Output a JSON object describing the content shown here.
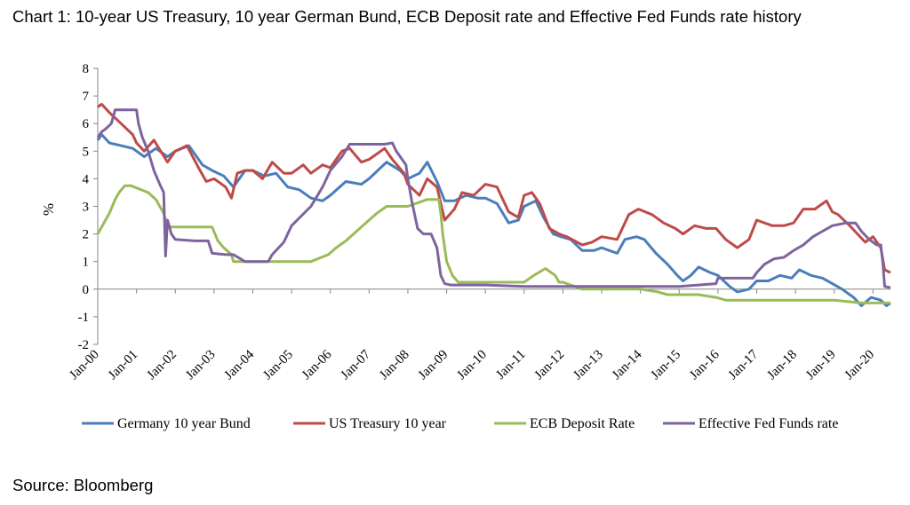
{
  "title": "Chart 1: 10-year US Treasury, 10 year German Bund, ECB Deposit rate and Effective Fed Funds rate history",
  "source": "Source: Bloomberg",
  "chart_data": {
    "type": "line",
    "title": "Chart 1: 10-year US Treasury, 10 year German Bund, ECB Deposit rate and Effective Fed Funds rate history",
    "xlabel": "",
    "ylabel": "%",
    "ylim": [
      -2,
      8
    ],
    "yticks": [
      "8",
      "7",
      "6",
      "5",
      "4",
      "3",
      "2",
      "1",
      "0",
      "-1",
      "-2"
    ],
    "xlim": [
      2000.0,
      2020.45
    ],
    "xticks": [
      "Jan-00",
      "Jan-01",
      "Jan-02",
      "Jan-03",
      "Jan-04",
      "Jan-05",
      "Jan-06",
      "Jan-07",
      "Jan-08",
      "Jan-09",
      "Jan-10",
      "Jan-11",
      "Jan-12",
      "Jan-13",
      "Jan-14",
      "Jan-15",
      "Jan-16",
      "Jan-17",
      "Jan-18",
      "Jan-19",
      "Jan-20"
    ],
    "grid": false,
    "legend_position": "bottom",
    "series": [
      {
        "name": "Germany 10 year Bund",
        "color": "#4a7ebb",
        "x": [
          2000.0,
          2000.1,
          2000.3,
          2000.6,
          2000.9,
          2001.2,
          2001.5,
          2001.8,
          2002.0,
          2002.35,
          2002.7,
          2002.95,
          2003.25,
          2003.5,
          2003.8,
          2004.0,
          2004.3,
          2004.6,
          2004.9,
          2005.2,
          2005.5,
          2005.8,
          2006.0,
          2006.4,
          2006.8,
          2007.0,
          2007.45,
          2007.8,
          2008.0,
          2008.3,
          2008.5,
          2008.75,
          2008.95,
          2009.2,
          2009.5,
          2009.8,
          2010.0,
          2010.3,
          2010.6,
          2010.85,
          2011.0,
          2011.3,
          2011.5,
          2011.75,
          2011.95,
          2012.2,
          2012.5,
          2012.8,
          2013.0,
          2013.4,
          2013.6,
          2013.9,
          2014.1,
          2014.4,
          2014.7,
          2014.95,
          2015.1,
          2015.3,
          2015.5,
          2015.8,
          2016.0,
          2016.3,
          2016.5,
          2016.8,
          2017.0,
          2017.3,
          2017.6,
          2017.9,
          2018.1,
          2018.4,
          2018.7,
          2018.95,
          2019.2,
          2019.5,
          2019.7,
          2019.95,
          2020.2,
          2020.35,
          2020.45
        ],
        "y": [
          5.4,
          5.6,
          5.3,
          5.2,
          5.1,
          4.8,
          5.1,
          4.8,
          5.0,
          5.2,
          4.5,
          4.3,
          4.1,
          3.7,
          4.3,
          4.3,
          4.1,
          4.2,
          3.7,
          3.6,
          3.3,
          3.2,
          3.4,
          3.9,
          3.8,
          4.0,
          4.6,
          4.3,
          4.0,
          4.2,
          4.6,
          3.9,
          3.2,
          3.2,
          3.4,
          3.3,
          3.3,
          3.1,
          2.4,
          2.5,
          3.0,
          3.2,
          2.6,
          2.0,
          1.9,
          1.8,
          1.4,
          1.4,
          1.5,
          1.3,
          1.8,
          1.9,
          1.8,
          1.3,
          0.9,
          0.5,
          0.3,
          0.5,
          0.8,
          0.6,
          0.5,
          0.1,
          -0.1,
          0.0,
          0.3,
          0.3,
          0.5,
          0.4,
          0.7,
          0.5,
          0.4,
          0.2,
          0.0,
          -0.3,
          -0.6,
          -0.3,
          -0.4,
          -0.6,
          -0.5
        ]
      },
      {
        "name": "US Treasury 10 year",
        "color": "#be4b48",
        "x": [
          2000.0,
          2000.1,
          2000.3,
          2000.6,
          2000.9,
          2001.0,
          2001.2,
          2001.45,
          2001.8,
          2002.0,
          2002.3,
          2002.6,
          2002.8,
          2003.0,
          2003.3,
          2003.45,
          2003.6,
          2003.8,
          2004.0,
          2004.25,
          2004.5,
          2004.8,
          2005.0,
          2005.3,
          2005.5,
          2005.8,
          2006.0,
          2006.3,
          2006.5,
          2006.8,
          2007.0,
          2007.4,
          2007.6,
          2007.9,
          2008.0,
          2008.3,
          2008.5,
          2008.75,
          2008.95,
          2009.2,
          2009.4,
          2009.7,
          2010.0,
          2010.3,
          2010.6,
          2010.85,
          2011.0,
          2011.2,
          2011.4,
          2011.65,
          2011.9,
          2012.1,
          2012.5,
          2012.75,
          2013.0,
          2013.4,
          2013.7,
          2013.95,
          2014.3,
          2014.6,
          2014.9,
          2015.1,
          2015.4,
          2015.7,
          2015.95,
          2016.2,
          2016.5,
          2016.8,
          2017.0,
          2017.4,
          2017.7,
          2017.95,
          2018.2,
          2018.5,
          2018.8,
          2018.95,
          2019.1,
          2019.4,
          2019.6,
          2019.8,
          2020.0,
          2020.2,
          2020.3,
          2020.45
        ],
        "y": [
          6.6,
          6.7,
          6.4,
          6.0,
          5.6,
          5.3,
          5.0,
          5.4,
          4.6,
          5.0,
          5.2,
          4.4,
          3.9,
          4.0,
          3.7,
          3.3,
          4.2,
          4.3,
          4.3,
          4.0,
          4.6,
          4.2,
          4.2,
          4.5,
          4.2,
          4.5,
          4.4,
          5.0,
          5.1,
          4.6,
          4.7,
          5.1,
          4.7,
          4.2,
          3.8,
          3.4,
          4.0,
          3.7,
          2.5,
          2.9,
          3.5,
          3.4,
          3.8,
          3.7,
          2.8,
          2.6,
          3.4,
          3.5,
          3.1,
          2.2,
          2.0,
          1.9,
          1.6,
          1.7,
          1.9,
          1.8,
          2.7,
          2.9,
          2.7,
          2.4,
          2.2,
          2.0,
          2.3,
          2.2,
          2.2,
          1.8,
          1.5,
          1.8,
          2.5,
          2.3,
          2.3,
          2.4,
          2.9,
          2.9,
          3.2,
          2.8,
          2.7,
          2.3,
          2.0,
          1.7,
          1.9,
          1.5,
          0.7,
          0.6
        ]
      },
      {
        "name": "ECB Deposit Rate",
        "color": "#9bbb59",
        "x": [
          2000.0,
          2000.1,
          2000.2,
          2000.3,
          2000.45,
          2000.55,
          2000.7,
          2000.85,
          2001.3,
          2001.5,
          2001.7,
          2001.8,
          2001.95,
          2002.0,
          2002.2,
          2002.4,
          2002.6,
          2002.85,
          2002.95,
          2003.1,
          2003.25,
          2003.45,
          2003.5,
          2004.0,
          2004.5,
          2005.0,
          2005.5,
          2005.95,
          2006.15,
          2006.4,
          2006.6,
          2006.8,
          2007.0,
          2007.2,
          2007.45,
          2007.8,
          2008.0,
          2008.5,
          2008.8,
          2008.85,
          2008.9,
          2009.0,
          2009.15,
          2009.3,
          2009.5,
          2010.0,
          2011.0,
          2011.25,
          2011.55,
          2011.8,
          2011.9,
          2012.0,
          2012.5,
          2013.0,
          2014.0,
          2014.45,
          2014.7,
          2015.0,
          2015.5,
          2015.95,
          2016.2,
          2016.5,
          2017.0,
          2018.0,
          2019.0,
          2019.7,
          2020.0,
          2020.45
        ],
        "y": [
          2.0,
          2.25,
          2.5,
          2.75,
          3.25,
          3.5,
          3.75,
          3.75,
          3.5,
          3.25,
          2.75,
          2.25,
          2.25,
          2.25,
          2.25,
          2.25,
          2.25,
          2.25,
          2.25,
          1.75,
          1.5,
          1.25,
          1.0,
          1.0,
          1.0,
          1.0,
          1.0,
          1.25,
          1.5,
          1.75,
          2.0,
          2.25,
          2.5,
          2.75,
          3.0,
          3.0,
          3.0,
          3.25,
          3.25,
          2.75,
          2.0,
          1.0,
          0.5,
          0.25,
          0.25,
          0.25,
          0.25,
          0.5,
          0.75,
          0.5,
          0.25,
          0.25,
          0.0,
          0.0,
          0.0,
          -0.1,
          -0.2,
          -0.2,
          -0.2,
          -0.3,
          -0.4,
          -0.4,
          -0.4,
          -0.4,
          -0.4,
          -0.5,
          -0.5,
          -0.5
        ]
      },
      {
        "name": "Effective Fed Funds rate",
        "color": "#7e649e",
        "x": [
          2000.0,
          2000.1,
          2000.2,
          2000.35,
          2000.45,
          2000.6,
          2000.8,
          2001.0,
          2001.05,
          2001.15,
          2001.3,
          2001.45,
          2001.6,
          2001.7,
          2001.75,
          2001.8,
          2001.9,
          2002.0,
          2002.5,
          2002.85,
          2002.95,
          2003.3,
          2003.5,
          2003.8,
          2004.0,
          2004.4,
          2004.5,
          2004.8,
          2005.0,
          2005.5,
          2005.8,
          2006.0,
          2006.3,
          2006.5,
          2006.8,
          2007.0,
          2007.4,
          2007.6,
          2007.7,
          2007.95,
          2008.0,
          2008.1,
          2008.25,
          2008.4,
          2008.6,
          2008.75,
          2008.85,
          2008.95,
          2009.1,
          2009.5,
          2010.0,
          2011.0,
          2012.0,
          2013.0,
          2014.0,
          2015.0,
          2015.95,
          2016.0,
          2016.9,
          2017.0,
          2017.2,
          2017.45,
          2017.7,
          2017.95,
          2018.2,
          2018.45,
          2018.7,
          2018.95,
          2019.3,
          2019.55,
          2019.7,
          2019.9,
          2020.1,
          2020.2,
          2020.25,
          2020.3,
          2020.45
        ],
        "y": [
          5.5,
          5.7,
          5.8,
          6.0,
          6.5,
          6.5,
          6.5,
          6.5,
          6.0,
          5.5,
          5.0,
          4.3,
          3.8,
          3.5,
          1.2,
          2.5,
          2.0,
          1.8,
          1.75,
          1.75,
          1.3,
          1.25,
          1.25,
          1.0,
          1.0,
          1.0,
          1.25,
          1.7,
          2.3,
          3.0,
          3.7,
          4.3,
          4.8,
          5.25,
          5.25,
          5.25,
          5.25,
          5.3,
          5.0,
          4.5,
          4.0,
          3.2,
          2.2,
          2.0,
          2.0,
          1.5,
          0.5,
          0.2,
          0.15,
          0.15,
          0.15,
          0.1,
          0.1,
          0.1,
          0.1,
          0.1,
          0.2,
          0.4,
          0.4,
          0.6,
          0.9,
          1.1,
          1.15,
          1.4,
          1.6,
          1.9,
          2.1,
          2.3,
          2.4,
          2.4,
          2.1,
          1.8,
          1.6,
          1.6,
          1.0,
          0.1,
          0.05
        ]
      }
    ]
  }
}
